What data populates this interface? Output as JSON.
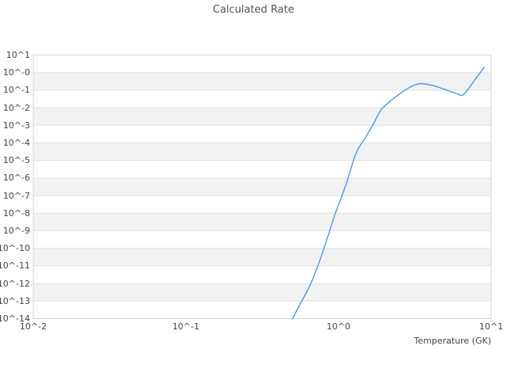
{
  "title": "Calculated Rate",
  "chart_data": {
    "type": "line",
    "title": "Calculated Rate",
    "xlabel": "Temperature (GK)",
    "ylabel": "",
    "x_scale": "log",
    "y_scale": "log",
    "xlim": [
      0.01,
      10
    ],
    "ylim": [
      1e-14,
      10
    ],
    "x_tick_labels": [
      "10^-2",
      "10^-1",
      "10^0",
      "10^1"
    ],
    "x_tick_exponents": [
      -2,
      -1,
      0,
      1
    ],
    "y_tick_labels": [
      "10^1",
      "10^-0",
      "10^-1",
      "10^-2",
      "10^-3",
      "10^-4",
      "10^-5",
      "10^-6",
      "10^-7",
      "10^-8",
      "10^-9",
      "10^-10",
      "10^-11",
      "10^-12",
      "10^-13",
      "10^-14"
    ],
    "y_tick_exponents": [
      1,
      0,
      -1,
      -2,
      -3,
      -4,
      -5,
      -6,
      -7,
      -8,
      -9,
      -10,
      -11,
      -12,
      -13,
      -14
    ],
    "grid": "horizontal decade gridlines with alternating shaded bands, no vertical gridlines",
    "legend": "none",
    "series": [
      {
        "name": "calculated rate",
        "color": "#4f97e3",
        "x": [
          0.5,
          0.55,
          0.65,
          0.75,
          0.85,
          0.95,
          1.12,
          1.3,
          1.5,
          1.7,
          1.92,
          2.4,
          2.9,
          3.4,
          4.1,
          4.9,
          6.0,
          6.6,
          7.9,
          9.0
        ],
        "y": [
          1e-14,
          5e-14,
          8e-13,
          1.8e-11,
          4.5e-10,
          9e-09,
          4.3e-07,
          2.5e-05,
          0.0002,
          0.0013,
          0.0085,
          0.045,
          0.14,
          0.235,
          0.19,
          0.115,
          0.062,
          0.058,
          0.44,
          2.0
        ]
      }
    ]
  },
  "colors": {
    "line": "#4f97e3",
    "band": "#f2f2f2",
    "gridline": "#e0e0e0",
    "border": "#d4d4d4",
    "text": "#555555",
    "background": "#ffffff"
  }
}
